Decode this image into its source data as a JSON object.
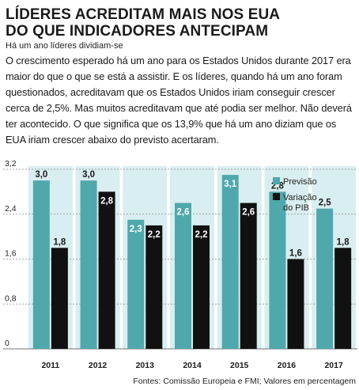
{
  "header": {
    "title_line1": "LÍDERES ACREDITAM MAIS NOS EUA",
    "title_line2": "DO QUE INDICADORES ANTECIPAM",
    "subtitle": "Há um ano líderes dividiam-se"
  },
  "body": {
    "text": "O crescimento esperado há um ano para os Estados Unidos durante 2017 era maior do que o que se está a assistir. E os líderes, quando há um ano foram questionados, acreditavam que os Estados Unidos iriam conseguir crescer cerca de 2,5%. Mas muitos acreditavam que até podia ser melhor. Não deverá ter acontecido. O que significa que os 13,9% que há um ano diziam que os EUA iriam crescer abaixo do previsto acertaram."
  },
  "colors": {
    "previsao": "#4fa8ac",
    "variacao": "#111111",
    "shade": "#d9eef0"
  },
  "chart_data": {
    "type": "bar",
    "categories": [
      "2011",
      "2012",
      "2013",
      "2014",
      "2015",
      "2016",
      "2017"
    ],
    "series": [
      {
        "name": "Previsão",
        "values": [
          3.0,
          3.0,
          2.3,
          2.6,
          3.1,
          2.8,
          2.5
        ],
        "labels": [
          "3,0",
          "3,0",
          "2,3",
          "2,6",
          "3,1",
          "2,8",
          "2,5"
        ]
      },
      {
        "name": "Variação do PIB",
        "values": [
          1.8,
          2.8,
          2.2,
          2.2,
          2.6,
          1.6,
          1.8
        ],
        "labels": [
          "1,8",
          "2,8",
          "2,2",
          "2,2",
          "2,6",
          "1,6",
          "1,8"
        ]
      }
    ],
    "yticks": [
      0,
      0.8,
      1.6,
      2.4,
      3.2
    ],
    "ytick_labels": [
      "0",
      "0,8",
      "1,6",
      "2,4",
      "3,2"
    ],
    "ylim": [
      0,
      3.2
    ],
    "legend": [
      "Previsão",
      "Variação",
      "do PIB"
    ],
    "legend_position": "top-right",
    "grid": true
  },
  "footer": {
    "source": "Fontes: Comissão Europeia e FMI; Valores em percentagem"
  }
}
